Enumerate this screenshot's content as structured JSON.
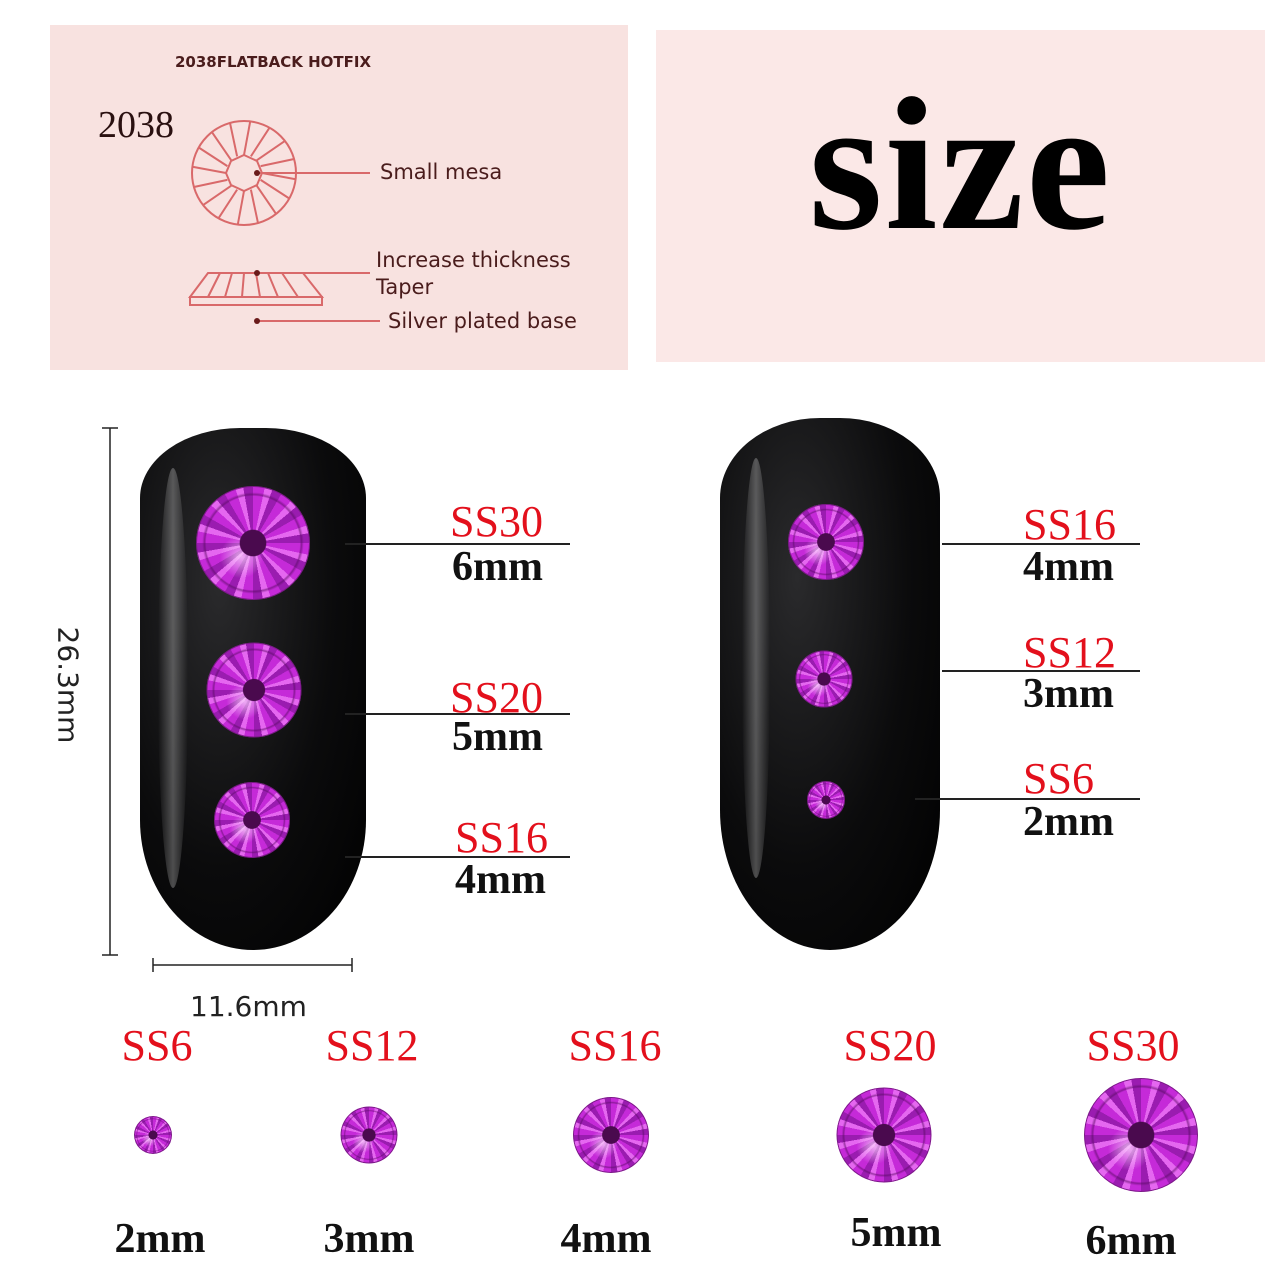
{
  "diagram_panel": {
    "header": "2038FLATBACK HOTFIX",
    "model": "2038",
    "callouts": [
      "Small mesa",
      "Increase thickness",
      "Taper",
      "Silver plated base"
    ]
  },
  "title_panel": {
    "title": "size"
  },
  "dimensions": {
    "height": "26.3mm",
    "width": "11.6mm"
  },
  "nail_left": {
    "items": [
      {
        "ss": "SS30",
        "mm": "6mm",
        "size_mm": 6
      },
      {
        "ss": "SS20",
        "mm": "5mm",
        "size_mm": 5
      },
      {
        "ss": "SS16",
        "mm": "4mm",
        "size_mm": 4
      }
    ]
  },
  "nail_right": {
    "items": [
      {
        "ss": "SS16",
        "mm": "4mm",
        "size_mm": 4
      },
      {
        "ss": "SS12",
        "mm": "3mm",
        "size_mm": 3
      },
      {
        "ss": "SS6",
        "mm": "2mm",
        "size_mm": 2
      }
    ]
  },
  "size_row": [
    {
      "ss": "SS6",
      "mm": "2mm",
      "size_mm": 2
    },
    {
      "ss": "SS12",
      "mm": "3mm",
      "size_mm": 3
    },
    {
      "ss": "SS16",
      "mm": "4mm",
      "size_mm": 4
    },
    {
      "ss": "SS20",
      "mm": "5mm",
      "size_mm": 5
    },
    {
      "ss": "SS30",
      "mm": "6mm",
      "size_mm": 6
    }
  ],
  "colors": {
    "label_red": "#e3101c",
    "gem": "#c030d0",
    "panel_pink": "#f8e2e0",
    "diagram_line": "#d9696a"
  }
}
